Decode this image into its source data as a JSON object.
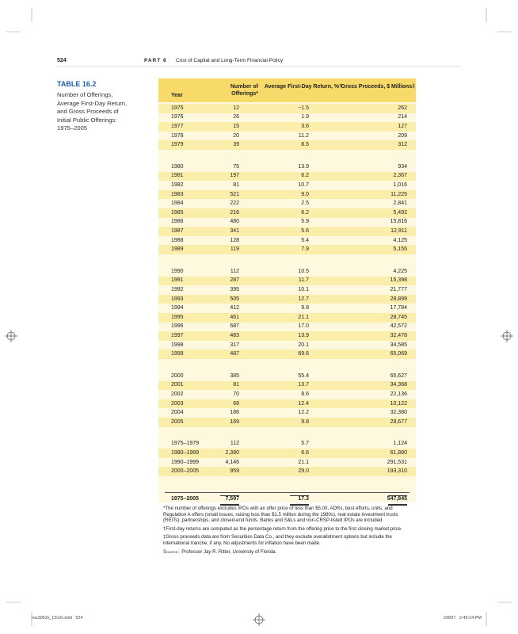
{
  "header": {
    "page_number": "524",
    "part": "PART 6",
    "part_title": "Cost of Capital and Long-Term Financial Policy"
  },
  "sidebar": {
    "table_label": "TABLE 16.2",
    "caption": "Number of Offerings, Average First-Day Return, and Gross Proceeds of Initial Public Offerings: 1975–2005"
  },
  "table": {
    "columns": [
      "Year",
      "Number of Offerings*",
      "Average First-Day Return, %†",
      "Gross Proceeds, $ Millions‡"
    ],
    "groups": [
      [
        [
          "1975",
          "12",
          "−1.5",
          "262"
        ],
        [
          "1976",
          "26",
          "1.9",
          "214"
        ],
        [
          "1977",
          "15",
          "3.6",
          "127"
        ],
        [
          "1978",
          "20",
          "11.2",
          "209"
        ],
        [
          "1979",
          "39",
          "8.5",
          "312"
        ]
      ],
      [
        [
          "1980",
          "75",
          "13.9",
          "934"
        ],
        [
          "1981",
          "197",
          "6.2",
          "2,367"
        ],
        [
          "1982",
          "81",
          "10.7",
          "1,016"
        ],
        [
          "1983",
          "521",
          "9.0",
          "11,225"
        ],
        [
          "1984",
          "222",
          "2.5",
          "2,841"
        ],
        [
          "1985",
          "216",
          "6.2",
          "5,492"
        ],
        [
          "1986",
          "480",
          "5.9",
          "15,816"
        ],
        [
          "1987",
          "341",
          "5.6",
          "12,911"
        ],
        [
          "1988",
          "128",
          "5.4",
          "4,125"
        ],
        [
          "1989",
          "119",
          "7.9",
          "5,155"
        ]
      ],
      [
        [
          "1990",
          "112",
          "10.5",
          "4,225"
        ],
        [
          "1991",
          "287",
          "11.7",
          "15,398"
        ],
        [
          "1992",
          "395",
          "10.1",
          "21,777"
        ],
        [
          "1993",
          "505",
          "12.7",
          "28,899"
        ],
        [
          "1994",
          "412",
          "9.8",
          "17,784"
        ],
        [
          "1995",
          "461",
          "21.1",
          "28,745"
        ],
        [
          "1996",
          "687",
          "17.0",
          "42,572"
        ],
        [
          "1997",
          "483",
          "13.9",
          "32,478"
        ],
        [
          "1998",
          "317",
          "20.1",
          "34,585"
        ],
        [
          "1999",
          "487",
          "69.6",
          "65,069"
        ]
      ],
      [
        [
          "2000",
          "385",
          "55.4",
          "65,627"
        ],
        [
          "2001",
          "81",
          "13.7",
          "34,368"
        ],
        [
          "2002",
          "70",
          "8.6",
          "22,136"
        ],
        [
          "2003",
          "68",
          "12.4",
          "10,122"
        ],
        [
          "2004",
          "186",
          "12.2",
          "32,380"
        ],
        [
          "2005",
          "169",
          "9.8",
          "28,677"
        ]
      ],
      [
        [
          "1975–1979",
          "112",
          "5.7",
          "1,124"
        ],
        [
          "1980–1989",
          "2,380",
          "6.6",
          "61,880"
        ],
        [
          "1990–1999",
          "4,146",
          "21.1",
          "291,531"
        ],
        [
          "2000–2005",
          "959",
          "29.0",
          "193,310"
        ]
      ]
    ],
    "total": [
      "1975–2005",
      "7,597",
      "17.3",
      "547,845"
    ]
  },
  "footnotes": [
    "*The number of offerings excludes IPOs with an offer price of less than $5.00, ADRs, best efforts, units, and Regulation A offers (small issues, raising less than $1.5 million during the 1980s), real estate investment trusts (REITs), partnerships, and closed-end funds. Banks and S&Ls and non-CRSP-listed IPOs are included.",
    "†First-day returns are computed as the percentage return from the offering price to the first closing market price.",
    "‡Gross proceeds data are from Securities Data Co., and they exclude overallotment options but include the international tranche, if any. No adjustments for inflation have been made."
  ],
  "source": {
    "label": "Source:",
    "text": "Professor Jay R. Ritter, University of Florida."
  },
  "slug": {
    "file": "ros3062x_Ch16.indd   524",
    "timestamp": "2/8/07   2:49:14 PM"
  }
}
